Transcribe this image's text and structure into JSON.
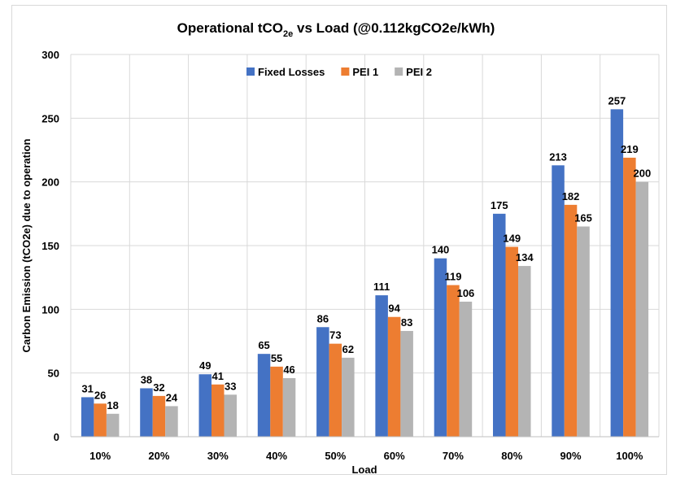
{
  "chart_data": {
    "type": "bar",
    "title_main": "Operational tCO",
    "title_sub": "2e",
    "title_rest": " vs Load (@0.112kgCO2e/kWh)",
    "xlabel": "Load",
    "ylabel": "Carbon Emission (tCO2e) due to operation",
    "ylim": [
      0,
      300
    ],
    "yticks": [
      0,
      50,
      100,
      150,
      200,
      250,
      300
    ],
    "grid": true,
    "legend_position": "top-center",
    "categories": [
      "10%",
      "20%",
      "30%",
      "40%",
      "50%",
      "60%",
      "70%",
      "80%",
      "90%",
      "100%"
    ],
    "series": [
      {
        "name": "Fixed Losses",
        "color": "#4472c4",
        "values": [
          31,
          38,
          49,
          65,
          86,
          111,
          140,
          175,
          213,
          257
        ]
      },
      {
        "name": "PEI 1",
        "color": "#ed7d31",
        "values": [
          26,
          32,
          41,
          55,
          73,
          94,
          119,
          149,
          182,
          219
        ]
      },
      {
        "name": "PEI 2",
        "color": "#b4b4b4",
        "values": [
          18,
          24,
          33,
          46,
          62,
          83,
          106,
          134,
          165,
          200
        ]
      }
    ]
  }
}
